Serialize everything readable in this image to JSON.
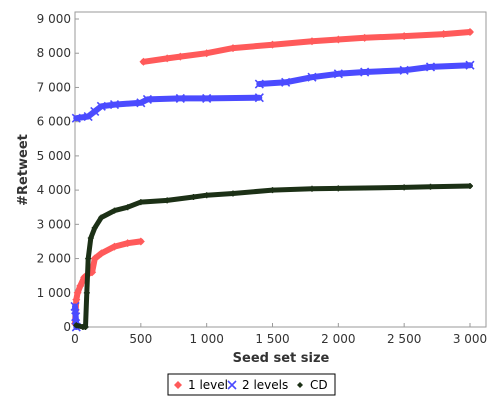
{
  "chart_data": {
    "type": "line",
    "xlabel": "Seed set size",
    "ylabel": "#Retweet",
    "xlim": [
      0,
      3000
    ],
    "ylim": [
      0,
      9000
    ],
    "x_ticks": [
      0,
      500,
      1000,
      1500,
      2000,
      2500,
      3000
    ],
    "x_tick_labels": [
      "0",
      "500",
      "1 000",
      "1 500",
      "2 000",
      "2 500",
      "3 000"
    ],
    "y_ticks": [
      0,
      1000,
      2000,
      3000,
      4000,
      5000,
      6000,
      7000,
      8000,
      9000
    ],
    "y_tick_labels": [
      "0",
      "1 000",
      "2 000",
      "3 000",
      "4 000",
      "5 000",
      "6 000",
      "7 000",
      "8 000",
      "9 000"
    ],
    "grid": false,
    "legend_position": "bottom-center",
    "series": [
      {
        "name": "1 level",
        "color": "#ff5a5a",
        "marker": "diamond",
        "segments": [
          [
            [
              0,
              100
            ],
            [
              5,
              500
            ],
            [
              10,
              800
            ],
            [
              20,
              1000
            ],
            [
              40,
              1200
            ],
            [
              70,
              1450
            ],
            [
              100,
              1550
            ],
            [
              130,
              1600
            ],
            [
              150,
              2000
            ],
            [
              200,
              2150
            ],
            [
              300,
              2350
            ],
            [
              400,
              2450
            ],
            [
              500,
              2500
            ]
          ],
          [
            [
              520,
              7750
            ],
            [
              700,
              7850
            ],
            [
              800,
              7900
            ],
            [
              1000,
              8000
            ],
            [
              1200,
              8150
            ],
            [
              1500,
              8250
            ],
            [
              1800,
              8350
            ],
            [
              2000,
              8400
            ],
            [
              2200,
              8450
            ],
            [
              2500,
              8500
            ],
            [
              2800,
              8560
            ],
            [
              3000,
              8620
            ]
          ]
        ]
      },
      {
        "name": "2 levels",
        "color": "#4b4bff",
        "marker": "x",
        "segments": [
          [
            [
              0,
              600
            ],
            [
              5,
              300
            ],
            [
              10,
              0
            ]
          ],
          [
            [
              10,
              6100
            ],
            [
              100,
              6150
            ],
            [
              150,
              6300
            ],
            [
              200,
              6450
            ],
            [
              300,
              6500
            ],
            [
              500,
              6550
            ],
            [
              550,
              6650
            ],
            [
              800,
              6680
            ],
            [
              1000,
              6680
            ],
            [
              1400,
              6700
            ]
          ],
          [
            [
              1400,
              7100
            ],
            [
              1600,
              7150
            ],
            [
              1800,
              7300
            ],
            [
              2000,
              7400
            ],
            [
              2200,
              7450
            ],
            [
              2500,
              7500
            ],
            [
              2700,
              7600
            ],
            [
              3000,
              7650
            ]
          ]
        ]
      },
      {
        "name": "CD",
        "color": "#1c3016",
        "marker": "plus",
        "segments": [
          [
            [
              10,
              50
            ],
            [
              60,
              0
            ],
            [
              80,
              0
            ],
            [
              90,
              1000
            ],
            [
              100,
              2000
            ],
            [
              120,
              2600
            ],
            [
              150,
              2900
            ],
            [
              200,
              3200
            ],
            [
              300,
              3400
            ],
            [
              400,
              3500
            ],
            [
              500,
              3650
            ],
            [
              700,
              3700
            ],
            [
              900,
              3800
            ],
            [
              1000,
              3850
            ],
            [
              1200,
              3900
            ],
            [
              1500,
              4000
            ],
            [
              1800,
              4040
            ],
            [
              2000,
              4050
            ],
            [
              2500,
              4080
            ],
            [
              2700,
              4100
            ],
            [
              3000,
              4120
            ]
          ]
        ]
      }
    ]
  }
}
